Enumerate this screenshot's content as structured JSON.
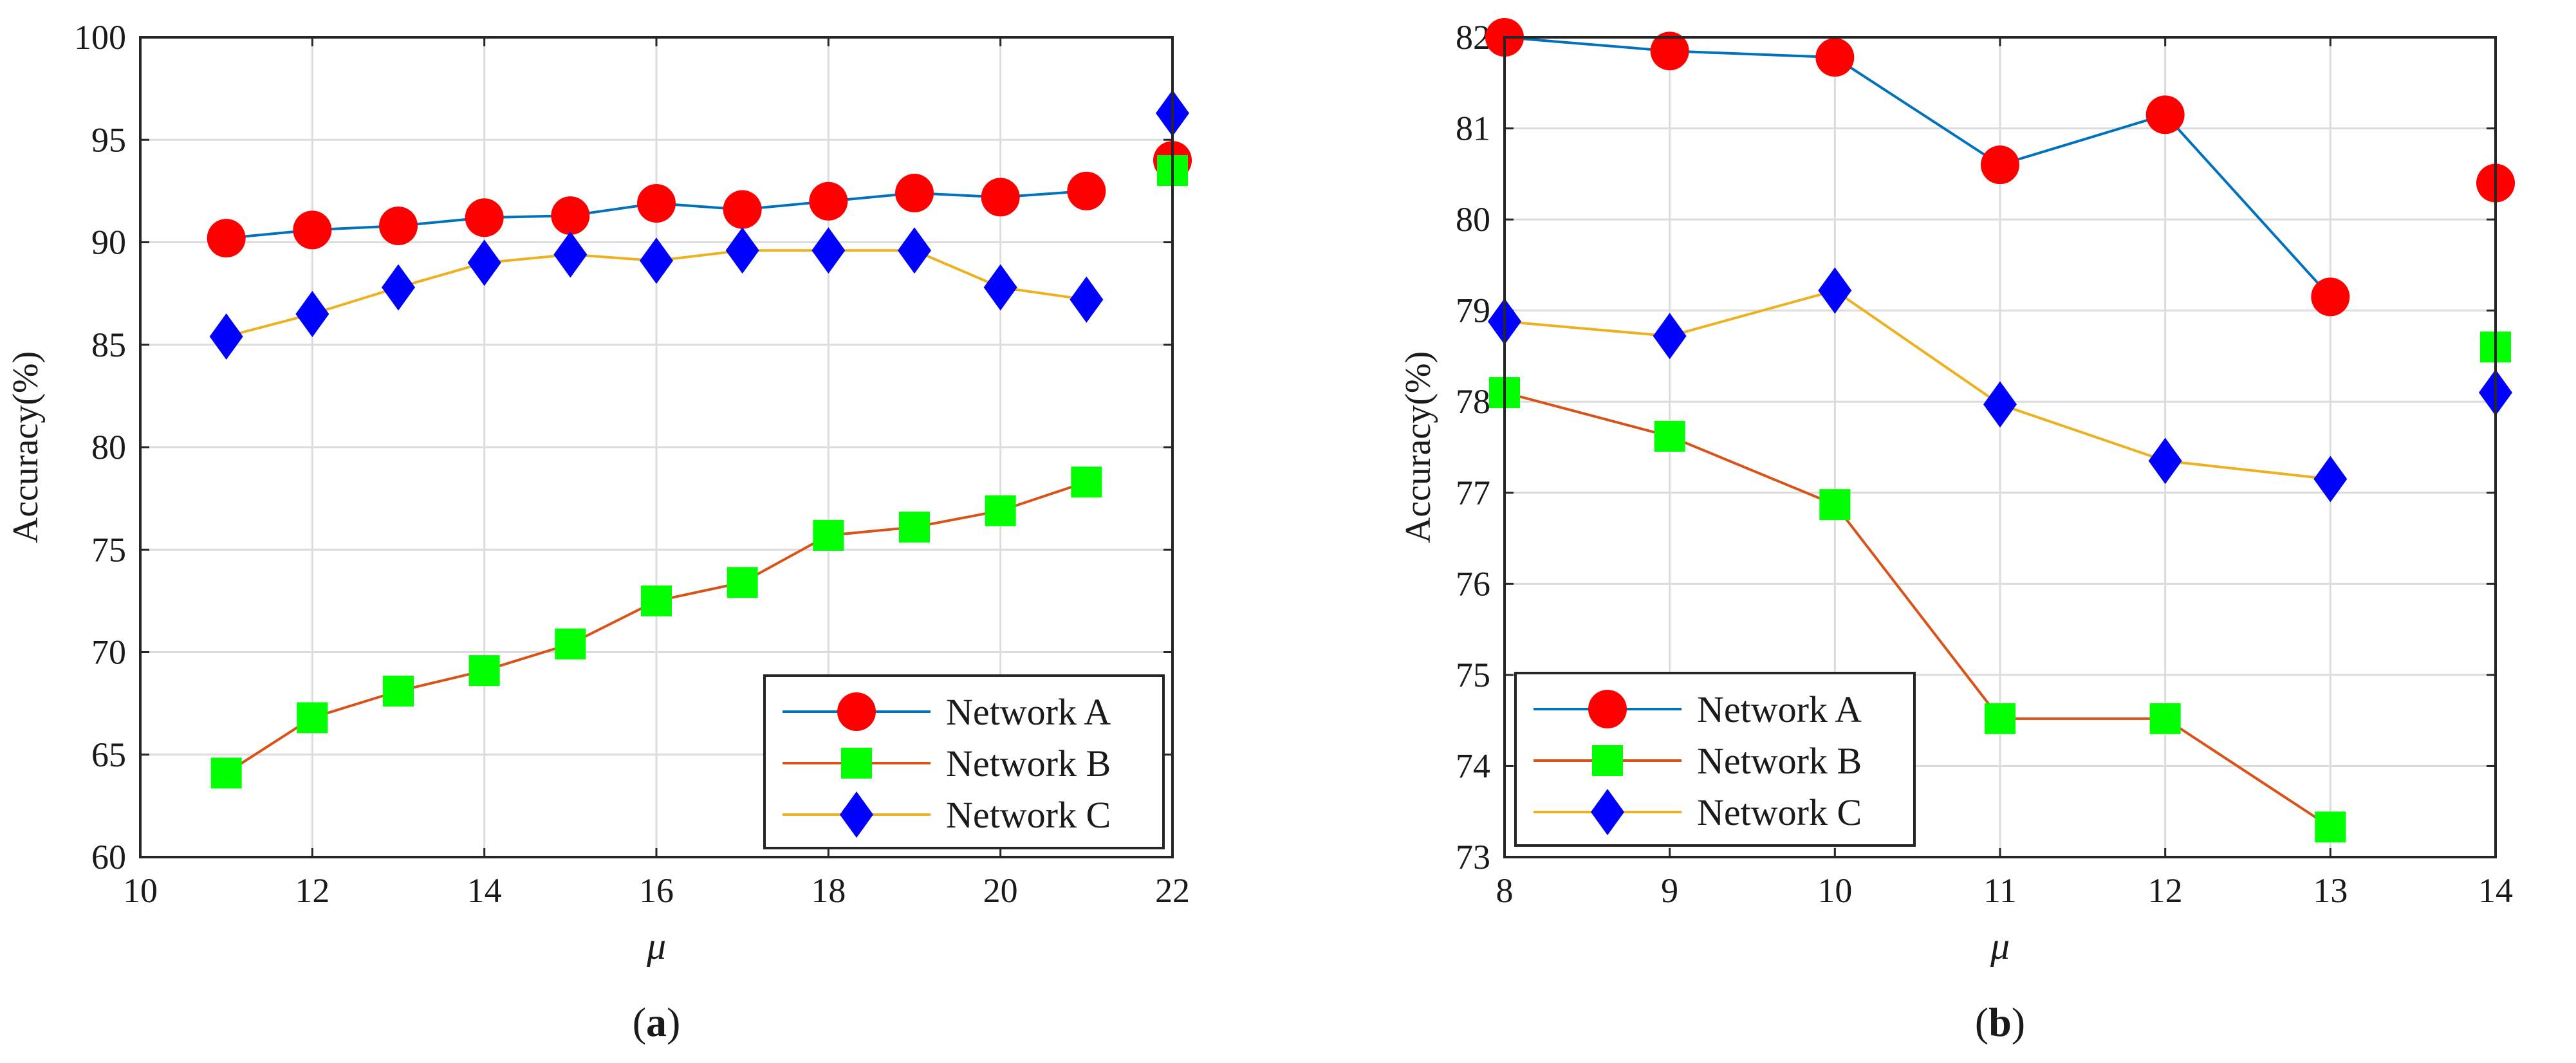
{
  "chart_data": [
    {
      "id": "a",
      "type": "line",
      "caption_open": "(",
      "caption_letter": "a",
      "caption_close": ")",
      "xlabel": "μ",
      "ylabel": "Accuracy(%)",
      "xlim": [
        10,
        22
      ],
      "ylim": [
        60,
        100
      ],
      "xticks": [
        10,
        12,
        14,
        16,
        18,
        20,
        22
      ],
      "yticks": [
        60,
        65,
        70,
        75,
        80,
        85,
        90,
        95,
        100
      ],
      "grid": true,
      "legend_position": "bottom-right",
      "series": [
        {
          "name": "Network A",
          "line_color": "#0072BD",
          "marker": "circle",
          "marker_color": "#ff0000",
          "line_x": [
            11,
            12,
            13,
            14,
            15,
            16,
            17,
            18,
            19,
            20,
            21
          ],
          "line_y": [
            90.2,
            90.6,
            90.8,
            91.2,
            91.3,
            91.9,
            91.6,
            92.0,
            92.4,
            92.2,
            92.5
          ],
          "x": [
            11,
            12,
            13,
            14,
            15,
            16,
            17,
            18,
            19,
            20,
            21,
            22
          ],
          "y": [
            90.2,
            90.6,
            90.8,
            91.2,
            91.3,
            91.9,
            91.6,
            92.0,
            92.4,
            92.2,
            92.5,
            94.0
          ]
        },
        {
          "name": "Network B",
          "line_color": "#D95319",
          "marker": "square",
          "marker_color": "#00ff00",
          "line_x": [
            11,
            12,
            13,
            14,
            15,
            16,
            17,
            18,
            19,
            20,
            21
          ],
          "line_y": [
            64.1,
            66.8,
            68.1,
            69.1,
            70.4,
            72.5,
            73.4,
            75.7,
            76.1,
            76.9,
            78.3
          ],
          "x": [
            11,
            12,
            13,
            14,
            15,
            16,
            17,
            18,
            19,
            20,
            21,
            22
          ],
          "y": [
            64.1,
            66.8,
            68.1,
            69.1,
            70.4,
            72.5,
            73.4,
            75.7,
            76.1,
            76.9,
            78.3,
            93.5
          ]
        },
        {
          "name": "Network C",
          "line_color": "#EDB120",
          "marker": "diamond",
          "marker_color": "#0000ff",
          "line_x": [
            11,
            12,
            13,
            14,
            15,
            16,
            17,
            18,
            19,
            20,
            21
          ],
          "line_y": [
            85.4,
            86.5,
            87.8,
            89.0,
            89.4,
            89.1,
            89.6,
            89.6,
            89.6,
            87.8,
            87.2
          ],
          "x": [
            11,
            12,
            13,
            14,
            15,
            16,
            17,
            18,
            19,
            20,
            21,
            22
          ],
          "y": [
            85.4,
            86.5,
            87.8,
            89.0,
            89.4,
            89.1,
            89.6,
            89.6,
            89.6,
            87.8,
            87.2,
            96.3
          ]
        }
      ]
    },
    {
      "id": "b",
      "type": "line",
      "caption_open": "(",
      "caption_letter": "b",
      "caption_close": ")",
      "xlabel": "μ",
      "ylabel": "Accuracy(%)",
      "xlim": [
        8,
        14
      ],
      "ylim": [
        73,
        82
      ],
      "xticks": [
        8,
        9,
        10,
        11,
        12,
        13,
        14
      ],
      "yticks": [
        73,
        74,
        75,
        76,
        77,
        78,
        79,
        80,
        81,
        82
      ],
      "grid": true,
      "legend_position": "bottom-left",
      "series": [
        {
          "name": "Network A",
          "line_color": "#0072BD",
          "marker": "circle",
          "marker_color": "#ff0000",
          "line_x": [
            8,
            9,
            10,
            11,
            12,
            13
          ],
          "line_y": [
            82.0,
            81.85,
            81.78,
            80.6,
            81.15,
            79.15
          ],
          "x": [
            8,
            9,
            10,
            11,
            12,
            13,
            14
          ],
          "y": [
            82.0,
            81.85,
            81.78,
            80.6,
            81.15,
            79.15,
            80.4
          ]
        },
        {
          "name": "Network B",
          "line_color": "#D95319",
          "marker": "square",
          "marker_color": "#00ff00",
          "line_x": [
            8,
            9,
            10,
            11,
            12,
            13
          ],
          "line_y": [
            78.1,
            77.62,
            76.87,
            74.52,
            74.52,
            73.33
          ],
          "x": [
            8,
            9,
            10,
            11,
            12,
            13,
            14
          ],
          "y": [
            78.1,
            77.62,
            76.87,
            74.52,
            74.52,
            73.33,
            78.6
          ]
        },
        {
          "name": "Network C",
          "line_color": "#EDB120",
          "marker": "diamond",
          "marker_color": "#0000ff",
          "line_x": [
            8,
            9,
            10,
            11,
            12,
            13
          ],
          "line_y": [
            78.88,
            78.72,
            79.22,
            77.97,
            77.35,
            77.15
          ],
          "x": [
            8,
            9,
            10,
            11,
            12,
            13,
            14
          ],
          "y": [
            78.88,
            78.72,
            79.22,
            77.97,
            77.35,
            77.15,
            78.1
          ]
        }
      ]
    }
  ]
}
